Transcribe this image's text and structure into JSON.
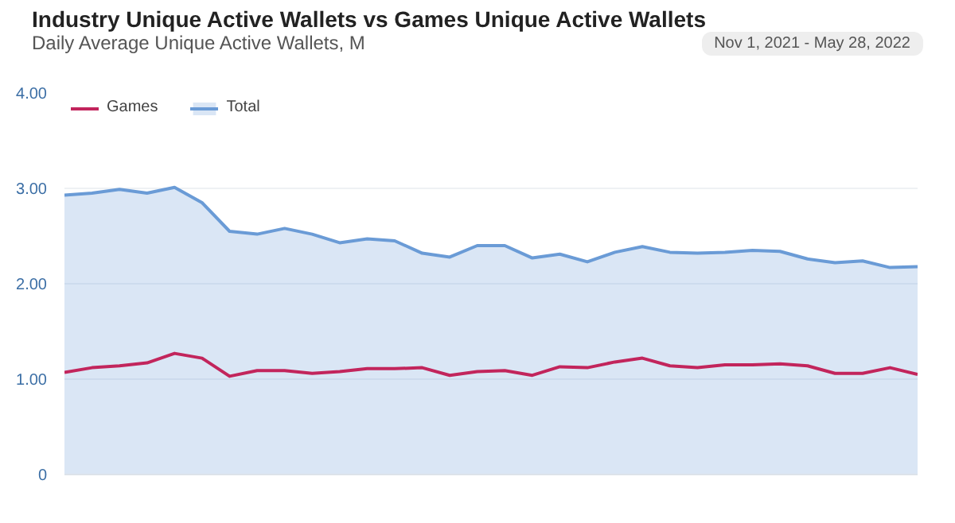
{
  "chart_data": {
    "type": "line",
    "title": "Industry Unique Active Wallets vs Games Unique Active Wallets",
    "subtitle": "Daily Average Unique Active Wallets, M",
    "annotations": [
      "Nov 1, 2021 - May 28, 2022"
    ],
    "categories": [
      null,
      null,
      null,
      null,
      null,
      null,
      null,
      null,
      null,
      null,
      null,
      null,
      null,
      null,
      null,
      null,
      null,
      null,
      null,
      null,
      null,
      null,
      null,
      null,
      null,
      null,
      null,
      null,
      null,
      null,
      null,
      null
    ],
    "series": [
      {
        "name": "Games",
        "color": "#c2255c",
        "values": [
          1.07,
          1.12,
          1.14,
          1.17,
          1.27,
          1.22,
          1.03,
          1.09,
          1.09,
          1.06,
          1.08,
          1.11,
          1.11,
          1.12,
          1.04,
          1.08,
          1.09,
          1.04,
          1.13,
          1.12,
          1.18,
          1.22,
          1.14,
          1.12,
          1.15,
          1.15,
          1.16,
          1.14,
          1.06,
          1.06,
          1.12,
          1.05
        ]
      },
      {
        "name": "Total",
        "type": "area",
        "color": "#6a9bd6",
        "values": [
          2.93,
          2.95,
          2.99,
          2.95,
          3.01,
          2.85,
          2.55,
          2.52,
          2.58,
          2.52,
          2.43,
          2.47,
          2.45,
          2.32,
          2.28,
          2.4,
          2.4,
          2.27,
          2.31,
          2.23,
          2.33,
          2.39,
          2.33,
          2.32,
          2.33,
          2.35,
          2.34,
          2.26,
          2.22,
          2.24,
          2.17,
          2.18
        ]
      }
    ],
    "ylim": [
      0,
      4
    ],
    "yticks": [
      {
        "value": 0,
        "label": "0"
      },
      {
        "value": 1,
        "label": "1.00"
      },
      {
        "value": 2,
        "label": "2.00"
      },
      {
        "value": 3,
        "label": "3.00"
      },
      {
        "value": 4,
        "label": "4.00"
      }
    ],
    "grid": "y",
    "legend": "top left",
    "marker": "none",
    "line_style": "solid"
  }
}
